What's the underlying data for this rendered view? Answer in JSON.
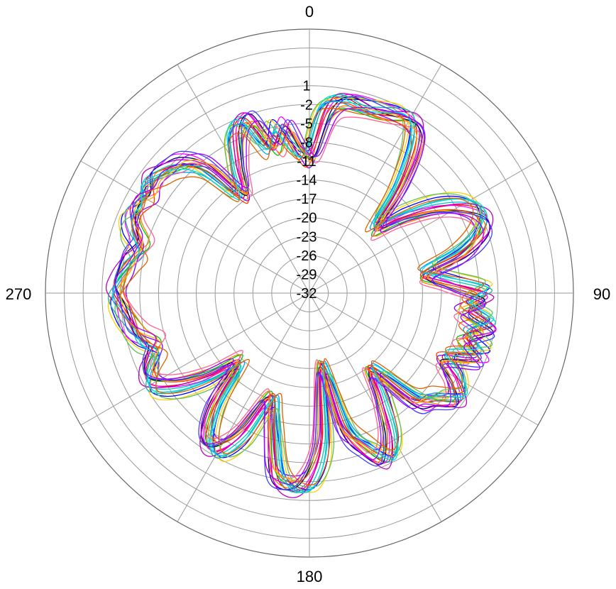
{
  "chart_data": {
    "type": "polar-line",
    "angle_labels": [
      "0",
      "90",
      "180",
      "270"
    ],
    "angle_label_degrees": [
      0,
      90,
      180,
      270
    ],
    "angle_direction": "clockwise",
    "angle_zero": "top",
    "spoke_step_degrees": 30,
    "radial_tick_labels": [
      "1",
      "-2",
      "-5",
      "-8",
      "-11",
      "-14",
      "-17",
      "-20",
      "-23",
      "-26",
      "-29",
      "-32"
    ],
    "radial_ticks": [
      1,
      -2,
      -5,
      -8,
      -11,
      -14,
      -17,
      -20,
      -23,
      -26,
      -29,
      -32
    ],
    "rlim": [
      -32,
      10
    ],
    "units": "",
    "grid": true,
    "legend": "none",
    "base_pattern": [
      [
        0,
        -10
      ],
      [
        5,
        -3
      ],
      [
        10,
        -1
      ],
      [
        20,
        -1
      ],
      [
        30,
        0
      ],
      [
        35,
        -3
      ],
      [
        40,
        -10
      ],
      [
        45,
        -17
      ],
      [
        50,
        -13
      ],
      [
        55,
        -8
      ],
      [
        60,
        -4
      ],
      [
        65,
        -2
      ],
      [
        70,
        -3
      ],
      [
        75,
        -7
      ],
      [
        80,
        -13
      ],
      [
        85,
        -10
      ],
      [
        90,
        -4
      ],
      [
        95,
        -7
      ],
      [
        100,
        -3
      ],
      [
        105,
        -6
      ],
      [
        110,
        -3
      ],
      [
        115,
        -8
      ],
      [
        120,
        -5
      ],
      [
        125,
        -3
      ],
      [
        130,
        -6
      ],
      [
        135,
        -8
      ],
      [
        140,
        -16
      ],
      [
        145,
        -12
      ],
      [
        150,
        -6
      ],
      [
        155,
        -3
      ],
      [
        160,
        -6
      ],
      [
        165,
        -10
      ],
      [
        170,
        -20
      ],
      [
        175,
        -8
      ],
      [
        180,
        -2
      ],
      [
        185,
        -1
      ],
      [
        190,
        -3
      ],
      [
        195,
        -10
      ],
      [
        200,
        -14
      ],
      [
        205,
        -7
      ],
      [
        210,
        -3
      ],
      [
        215,
        -4
      ],
      [
        220,
        -9
      ],
      [
        225,
        -16
      ],
      [
        230,
        -11
      ],
      [
        235,
        -6
      ],
      [
        240,
        -3
      ],
      [
        245,
        -4
      ],
      [
        250,
        -6
      ],
      [
        255,
        -4
      ],
      [
        260,
        -3
      ],
      [
        265,
        -2
      ],
      [
        270,
        -1
      ],
      [
        275,
        -2
      ],
      [
        280,
        -3
      ],
      [
        285,
        -4
      ],
      [
        290,
        -2
      ],
      [
        295,
        -1
      ],
      [
        300,
        -2
      ],
      [
        305,
        -1
      ],
      [
        310,
        -2
      ],
      [
        315,
        -3
      ],
      [
        320,
        -6
      ],
      [
        325,
        -13
      ],
      [
        330,
        -9
      ],
      [
        335,
        -4
      ],
      [
        340,
        -3
      ],
      [
        345,
        -8
      ],
      [
        350,
        -5
      ],
      [
        355,
        -9
      ]
    ],
    "series_colors": [
      "#ff0000",
      "#00c000",
      "#0000ff",
      "#ff00ff",
      "#00c8c8",
      "#ff8000",
      "#ffd000",
      "#8000ff",
      "#000080",
      "#00a0ff",
      "#ff6090",
      "#60c060",
      "#ff4000",
      "#c000c0",
      "#20b0a0",
      "#ffb000",
      "#4040ff",
      "#00e0e0",
      "#e06000",
      "#a000ff"
    ],
    "series_variation": [
      {
        "offset": 0.0,
        "shift": 0
      },
      {
        "offset": -0.8,
        "shift": 2
      },
      {
        "offset": 0.6,
        "shift": -2
      },
      {
        "offset": 1.0,
        "shift": 1
      },
      {
        "offset": 0.3,
        "shift": -1
      },
      {
        "offset": -0.5,
        "shift": 3
      },
      {
        "offset": 0.8,
        "shift": -3
      },
      {
        "offset": -1.2,
        "shift": 1
      },
      {
        "offset": 0.2,
        "shift": 2
      },
      {
        "offset": -0.3,
        "shift": -2
      },
      {
        "offset": -1.5,
        "shift": 4
      },
      {
        "offset": 0.5,
        "shift": -4
      },
      {
        "offset": -0.9,
        "shift": 0
      },
      {
        "offset": 0.9,
        "shift": 1
      },
      {
        "offset": 0.4,
        "shift": -1
      },
      {
        "offset": -0.6,
        "shift": 2
      },
      {
        "offset": 0.7,
        "shift": 3
      },
      {
        "offset": 0.1,
        "shift": -2
      },
      {
        "offset": -1.0,
        "shift": -3
      },
      {
        "offset": 0.0,
        "shift": 4
      }
    ]
  }
}
